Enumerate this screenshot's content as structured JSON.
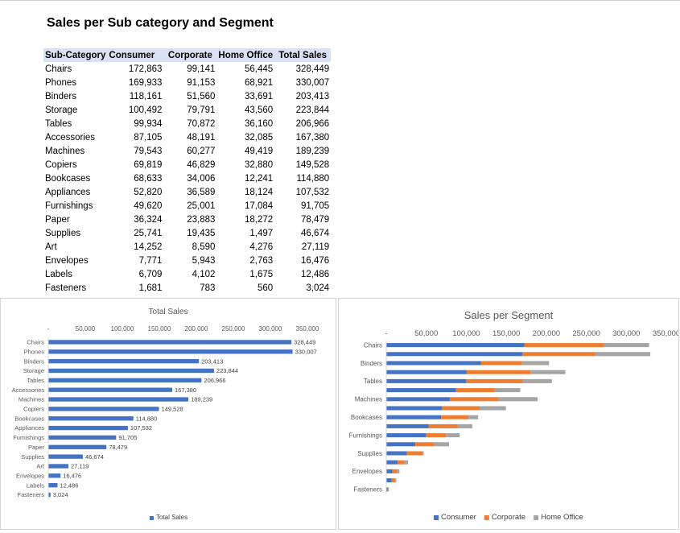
{
  "report": {
    "title": "Sales per Sub category and Segment"
  },
  "table": {
    "headers": [
      "Sub-Category",
      "Consumer",
      "Corporate",
      "Home Office",
      "Total Sales"
    ],
    "rows": [
      [
        "Chairs",
        "172,863",
        "99,141",
        "56,445",
        "328,449"
      ],
      [
        "Phones",
        "169,933",
        "91,153",
        "68,921",
        "330,007"
      ],
      [
        "Binders",
        "118,161",
        "51,560",
        "33,691",
        "203,413"
      ],
      [
        "Storage",
        "100,492",
        "79,791",
        "43,560",
        "223,844"
      ],
      [
        "Tables",
        "99,934",
        "70,872",
        "36,160",
        "206,966"
      ],
      [
        "Accessories",
        "87,105",
        "48,191",
        "32,085",
        "167,380"
      ],
      [
        "Machines",
        "79,543",
        "60,277",
        "49,419",
        "189,239"
      ],
      [
        "Copiers",
        "69,819",
        "46,829",
        "32,880",
        "149,528"
      ],
      [
        "Bookcases",
        "68,633",
        "34,006",
        "12,241",
        "114,880"
      ],
      [
        "Appliances",
        "52,820",
        "36,589",
        "18,124",
        "107,532"
      ],
      [
        "Furnishings",
        "49,620",
        "25,001",
        "17,084",
        "91,705"
      ],
      [
        "Paper",
        "36,324",
        "23,883",
        "18,272",
        "78,479"
      ],
      [
        "Supplies",
        "25,741",
        "19,435",
        "1,497",
        "46,674"
      ],
      [
        "Art",
        "14,252",
        "8,590",
        "4,276",
        "27,119"
      ],
      [
        "Envelopes",
        "7,771",
        "5,943",
        "2,763",
        "16,476"
      ],
      [
        "Labels",
        "6,709",
        "4,102",
        "1,675",
        "12,486"
      ],
      [
        "Fasteners",
        "1,681",
        "783",
        "560",
        "3,024"
      ]
    ]
  },
  "chart_data": [
    {
      "type": "bar",
      "orientation": "horizontal",
      "title": "Total Sales",
      "categories": [
        "Chairs",
        "Phones",
        "Binders",
        "Storage",
        "Tables",
        "Accessories",
        "Machines",
        "Copiers",
        "Bookcases",
        "Appliances",
        "Furnishings",
        "Paper",
        "Supplies",
        "Art",
        "Envelopes",
        "Labels",
        "Fasteners"
      ],
      "series": [
        {
          "name": "Total Sales",
          "color": "#4472c4",
          "values": [
            328449,
            330007,
            203413,
            223844,
            206966,
            167380,
            189239,
            149528,
            114880,
            107532,
            91705,
            78479,
            46674,
            27119,
            16476,
            12486,
            3024
          ],
          "labels": [
            "328,449",
            "330,007",
            "203,413",
            "223,844",
            "206,966",
            "167,380",
            "189,239",
            "149,528",
            "114,880",
            "107,532",
            "91,705",
            "78,479",
            "46,674",
            "27,119",
            "16,476",
            "12,486",
            "3,024"
          ]
        }
      ],
      "xlim": [
        0,
        350000
      ],
      "xticks": [
        0,
        50000,
        100000,
        150000,
        200000,
        250000,
        300000,
        350000
      ],
      "xtick_labels": [
        "-",
        "50,000",
        "100,000",
        "150,000",
        "200,000",
        "250,000",
        "300,000",
        "350,000"
      ],
      "legend": "bottom",
      "grid": false
    },
    {
      "type": "bar",
      "orientation": "horizontal",
      "stacked": true,
      "title": "Sales per Segment",
      "categories": [
        "Chairs",
        "Phones",
        "Binders",
        "Storage",
        "Tables",
        "Accessories",
        "Machines",
        "Copiers",
        "Bookcases",
        "Appliances",
        "Furnishings",
        "Paper",
        "Supplies",
        "Art",
        "Envelopes",
        "Labels",
        "Fasteners"
      ],
      "category_labels": [
        "Chairs",
        "",
        "Binders",
        "",
        "Tables",
        "",
        "Machines",
        "",
        "Bookcases",
        "",
        "Furnishings",
        "",
        "Supplies",
        "",
        "Envelopes",
        "",
        "Fasteners"
      ],
      "series": [
        {
          "name": "Consumer",
          "color": "#4472c4",
          "values": [
            172863,
            169933,
            118161,
            100492,
            99934,
            87105,
            79543,
            69819,
            68633,
            52820,
            49620,
            36324,
            25741,
            14252,
            7771,
            6709,
            1681
          ]
        },
        {
          "name": "Corporate",
          "color": "#ed7d31",
          "values": [
            99141,
            91153,
            51560,
            79791,
            70872,
            48191,
            60277,
            46829,
            34006,
            36589,
            25001,
            23883,
            19435,
            8590,
            5943,
            4102,
            783
          ]
        },
        {
          "name": "Home Office",
          "color": "#a5a5a5",
          "values": [
            56445,
            68921,
            33691,
            43560,
            36160,
            32085,
            49419,
            32880,
            12241,
            18124,
            17084,
            18272,
            1497,
            4276,
            2763,
            1675,
            560
          ]
        }
      ],
      "xlim": [
        0,
        350000
      ],
      "xticks": [
        0,
        50000,
        100000,
        150000,
        200000,
        250000,
        300000,
        350000
      ],
      "xtick_labels": [
        "-",
        "50,000",
        "100,000",
        "150,000",
        "200,000",
        "250,000",
        "300,000",
        "350,000"
      ],
      "legend": "bottom",
      "grid": false
    }
  ]
}
